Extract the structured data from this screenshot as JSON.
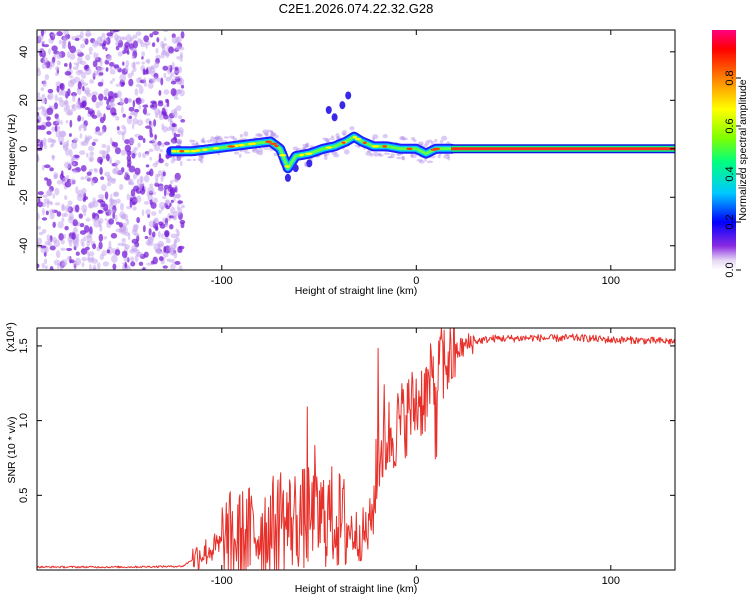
{
  "title": "C2E1.2026.074.22.32.G28",
  "colors": {
    "signal": "#e8302a",
    "noise_purple": "#8a2be2",
    "axis": "#000000",
    "background": "#ffffff"
  },
  "chart_data": [
    {
      "type": "heatmap",
      "title": "C2E1.2026.074.22.32.G28",
      "xlabel": "Height of straight line (km)",
      "ylabel": "Frequency (Hz)",
      "xlim": [
        -195,
        133
      ],
      "ylim": [
        -50,
        49
      ],
      "xticks": [
        -100,
        0,
        100
      ],
      "xtick_labels": [
        "-100",
        "0",
        "100"
      ],
      "yticks": [
        -40,
        -20,
        0,
        20,
        40
      ],
      "ytick_labels": [
        "-40",
        "-20",
        "0",
        "20",
        "40"
      ],
      "colorbar": {
        "label": "Normalized spectral amplitude",
        "range": [
          0,
          1
        ],
        "ticks": [
          0.0,
          0.2,
          0.4,
          0.6,
          0.8
        ],
        "tick_labels": [
          "0.0",
          "0.2",
          "0.4",
          "0.6",
          "0.8"
        ]
      },
      "regions": [
        {
          "name": "noise",
          "x_range": [
            -195,
            -120
          ],
          "freq_range": [
            -50,
            49
          ],
          "amplitude": 0.1
        },
        {
          "name": "scattered_band",
          "x_range": [
            -126,
            18
          ],
          "freq_range": [
            -10,
            8
          ],
          "amplitude": 0.3
        },
        {
          "name": "carrier_line",
          "x_range": [
            18,
            133
          ],
          "frequency": 0,
          "amplitude": 1.0
        }
      ],
      "track": {
        "x": [
          -126,
          -115,
          -105,
          -95,
          -85,
          -75,
          -70,
          -66,
          -62,
          -55,
          -48,
          -42,
          -36,
          -32,
          -28,
          -22,
          -15,
          -8,
          0,
          5,
          10,
          18
        ],
        "frequency": [
          -1,
          -1,
          0,
          1,
          2,
          3,
          0,
          -8,
          -3,
          -2,
          0,
          1,
          3,
          5,
          3,
          1,
          1,
          0,
          0,
          -2,
          0,
          0
        ]
      }
    },
    {
      "type": "line",
      "title": "",
      "xlabel": "Height of straight line (km)",
      "ylabel": "SNR (10 * v/v)",
      "y_multiplier_label": "(x10⁴)",
      "xlim": [
        -195,
        133
      ],
      "ylim": [
        0.0,
        1.62
      ],
      "xticks": [
        -100,
        0,
        100
      ],
      "xtick_labels": [
        "-100",
        "0",
        "100"
      ],
      "yticks": [
        0.5,
        1.0,
        1.5
      ],
      "ytick_labels": [
        "0.5",
        "1.0",
        "1.5"
      ],
      "series": [
        {
          "name": "SNR",
          "color": "#e8302a",
          "x": [
            -195,
            -150,
            -120,
            -112,
            -100,
            -90,
            -80,
            -70,
            -60,
            -50,
            -45,
            -40,
            -35,
            -30,
            -25,
            -22,
            -20,
            -18,
            -15,
            -10,
            -5,
            0,
            5,
            10,
            15,
            20,
            25,
            30,
            40,
            50,
            60,
            70,
            80,
            90,
            100,
            110,
            120,
            133
          ],
          "values": [
            0.02,
            0.02,
            0.025,
            0.1,
            0.17,
            0.2,
            0.27,
            0.3,
            0.35,
            0.33,
            0.37,
            0.33,
            0.28,
            0.23,
            0.25,
            0.4,
            0.72,
            0.8,
            0.88,
            0.95,
            1.04,
            1.12,
            1.18,
            1.3,
            1.4,
            1.46,
            1.5,
            1.53,
            1.55,
            1.55,
            1.555,
            1.55,
            1.555,
            1.55,
            1.54,
            1.54,
            1.535,
            1.53
          ]
        }
      ]
    }
  ]
}
